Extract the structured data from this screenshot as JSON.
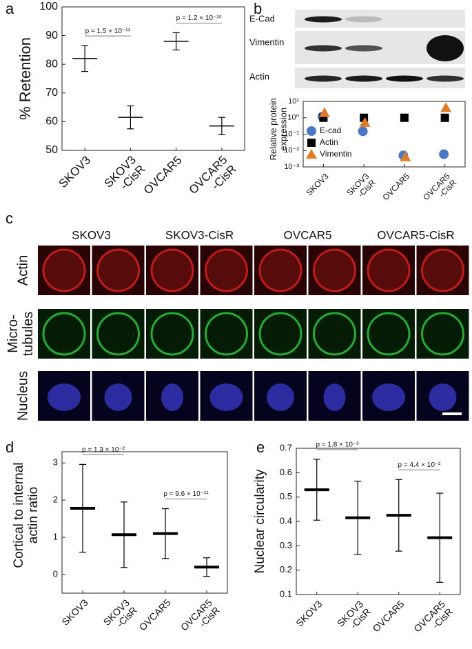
{
  "panel_labels": [
    "a",
    "b",
    "c",
    "d",
    "e"
  ],
  "chart_data": [
    {
      "type": "errorbar",
      "ylabel": "% Retention",
      "categories": [
        "SKOV3",
        "SKOV3\n-CisR",
        "OVCAR5",
        "OVCAR5\n-CisR"
      ],
      "values": [
        82,
        61.5,
        88,
        58.5
      ],
      "errors": [
        4.5,
        4,
        3,
        3
      ],
      "color": "#000000",
      "ylim": [
        50,
        100
      ],
      "yticks": [
        50,
        60,
        70,
        80,
        90,
        100
      ],
      "annotations": [
        "p = 1.5 × 10⁻¹¹",
        "p = 1.2 × 10⁻¹⁵"
      ]
    },
    {
      "type": "scatter",
      "ylabel": "Relative protein\nexpression",
      "log_y": true,
      "categories": [
        "SKOV3",
        "SKOV3\n-CisR",
        "OVCAR5",
        "OVCAR5\n-CisR"
      ],
      "ylim": [
        0.001,
        10
      ],
      "yticks": [
        {
          "value": 0.001,
          "label": "10⁻³"
        },
        {
          "value": 0.01,
          "label": "10⁻²"
        },
        {
          "value": 0.1,
          "label": "10⁻¹"
        },
        {
          "value": 1,
          "label": "10⁰"
        },
        {
          "value": 10,
          "label": "10¹"
        }
      ],
      "legend": "lower left",
      "series": [
        {
          "name": "E-cad",
          "color": "#4a78c4",
          "marker": "circle",
          "values": [
            1.2,
            0.15,
            0.005,
            0.006
          ]
        },
        {
          "name": "Actin",
          "color": "#000000",
          "marker": "square",
          "values": [
            1,
            1,
            1,
            1
          ]
        },
        {
          "name": "Vimentin",
          "color": "#e07b2a",
          "marker": "triangle",
          "values": [
            2,
            0.5,
            0.004,
            4
          ]
        }
      ]
    },
    {
      "type": "errorbar",
      "ylabel": "Cortical to internal\nactin ratio",
      "categories": [
        "SKOV3",
        "SKOV3\n-CisR",
        "OVCAR5",
        "OVCAR5\n-CisR"
      ],
      "values": [
        1.78,
        1.07,
        1.1,
        0.2
      ],
      "errors": [
        1.18,
        0.88,
        0.67,
        0.25
      ],
      "color": "#000000",
      "ylim": [
        -0.5,
        3.3
      ],
      "yticks": [
        0,
        1,
        2,
        3
      ],
      "annotations": [
        "p = 1.3 × 10⁻²",
        "p = 9.6 × 10⁻¹¹"
      ]
    },
    {
      "type": "errorbar",
      "ylabel": "Nuclear circularity",
      "categories": [
        "SKOV3",
        "SKOV3\n-CisR",
        "OVCAR5",
        "OVCAR5\n-CisR"
      ],
      "values": [
        0.53,
        0.415,
        0.425,
        0.333
      ],
      "errors": [
        0.125,
        0.15,
        0.147,
        0.183
      ],
      "color": "#000000",
      "ylim": [
        0.1,
        0.7
      ],
      "yticks": [
        0.1,
        0.2,
        0.3,
        0.4,
        0.5,
        0.6,
        0.7
      ],
      "annotations": [
        "p = 1.8 × 10⁻³",
        "p = 4.4 × 10⁻²"
      ]
    }
  ],
  "western_blot": {
    "labels": [
      "E-Cad",
      "Vimentin",
      "Actin"
    ]
  },
  "micrographs": {
    "columns": [
      "SKOV3",
      "SKOV3-CisR",
      "OVCAR5",
      "OVCAR5-CisR"
    ],
    "rows": [
      "Actin",
      "Micro-\ntubules",
      "Nucleus"
    ]
  }
}
